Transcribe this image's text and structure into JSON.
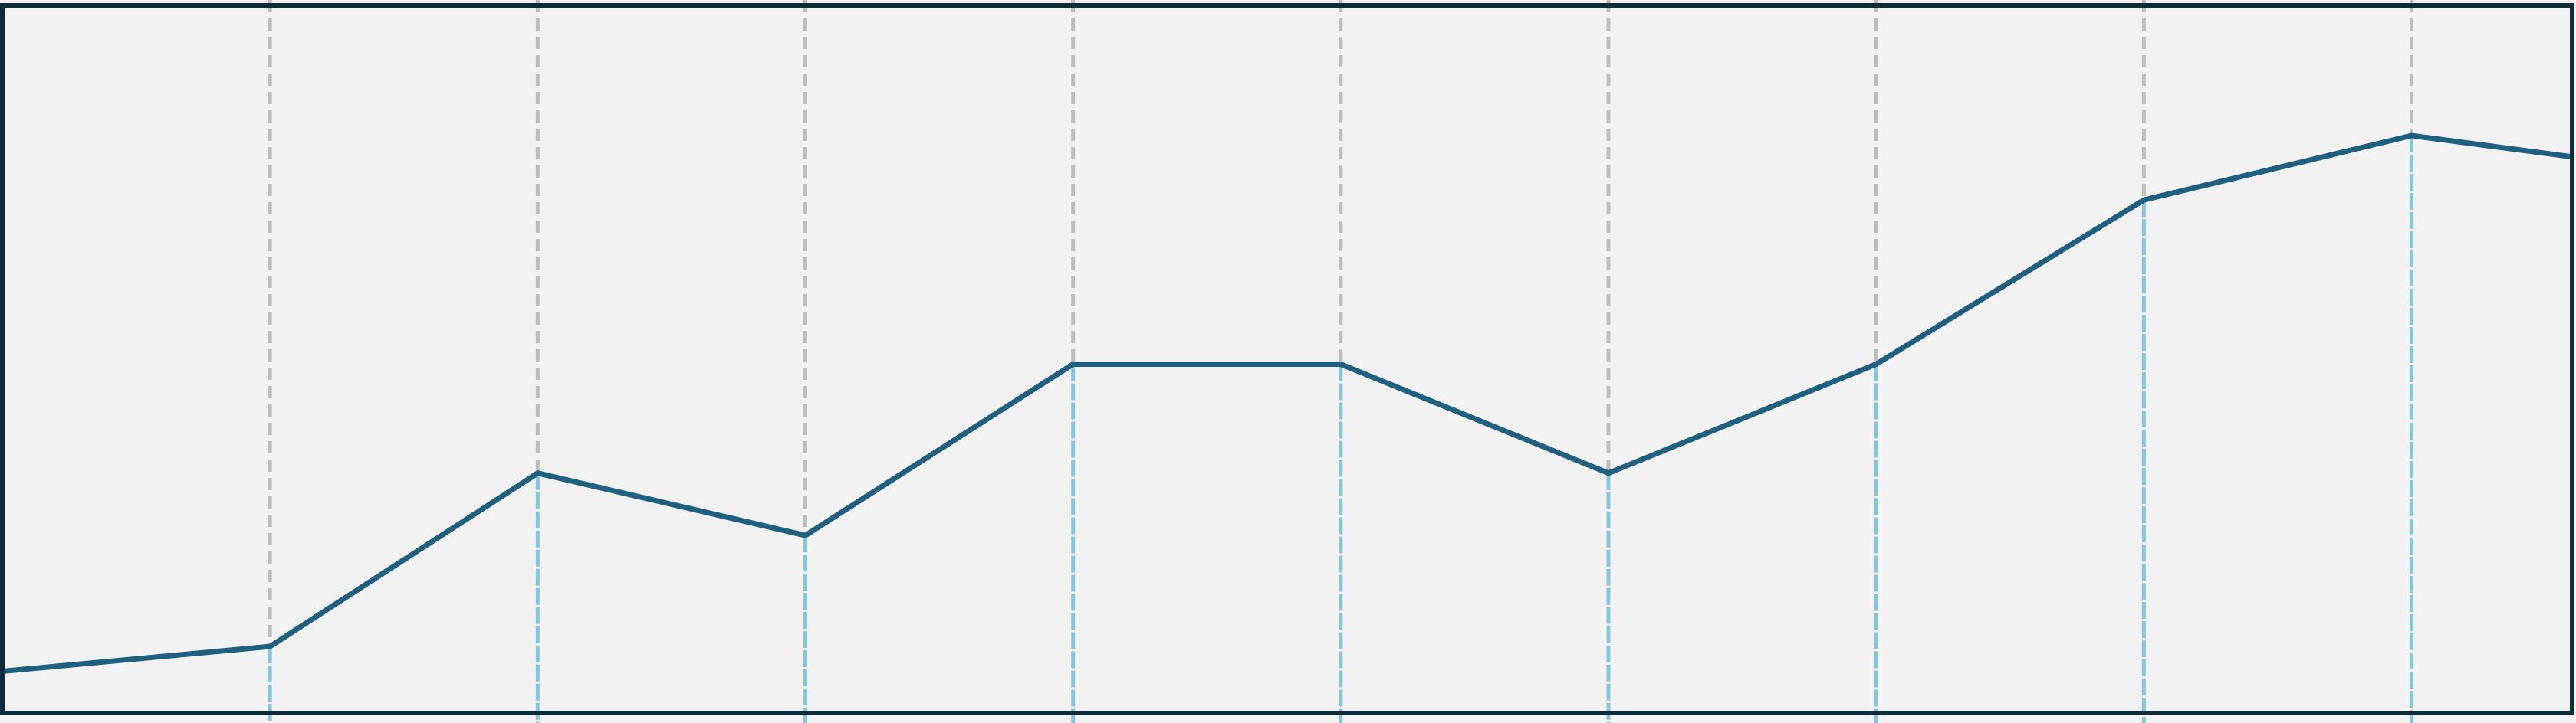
{
  "chart_data": {
    "type": "line",
    "title": "",
    "xlabel": "",
    "ylabel": "",
    "x": [
      0,
      1,
      2,
      3,
      4,
      5,
      6,
      7,
      8,
      9,
      10
    ],
    "ylim": [
      0,
      100
    ],
    "xlim": [
      0,
      9.6
    ],
    "grid": true,
    "series": [
      {
        "name": "",
        "values": [
          5.9,
          9.4,
          33.9,
          25.1,
          49.3,
          49.3,
          33.9,
          49.3,
          72.5,
          81.6,
          76.6
        ],
        "color": "#1f5f7f"
      }
    ]
  },
  "colors": {
    "background": "#f2f2f2",
    "frame": "#0f2a38",
    "line": "#1f5f7f",
    "grid_upper": "#bdbdbd",
    "grid_lower": "#86c6dc"
  }
}
